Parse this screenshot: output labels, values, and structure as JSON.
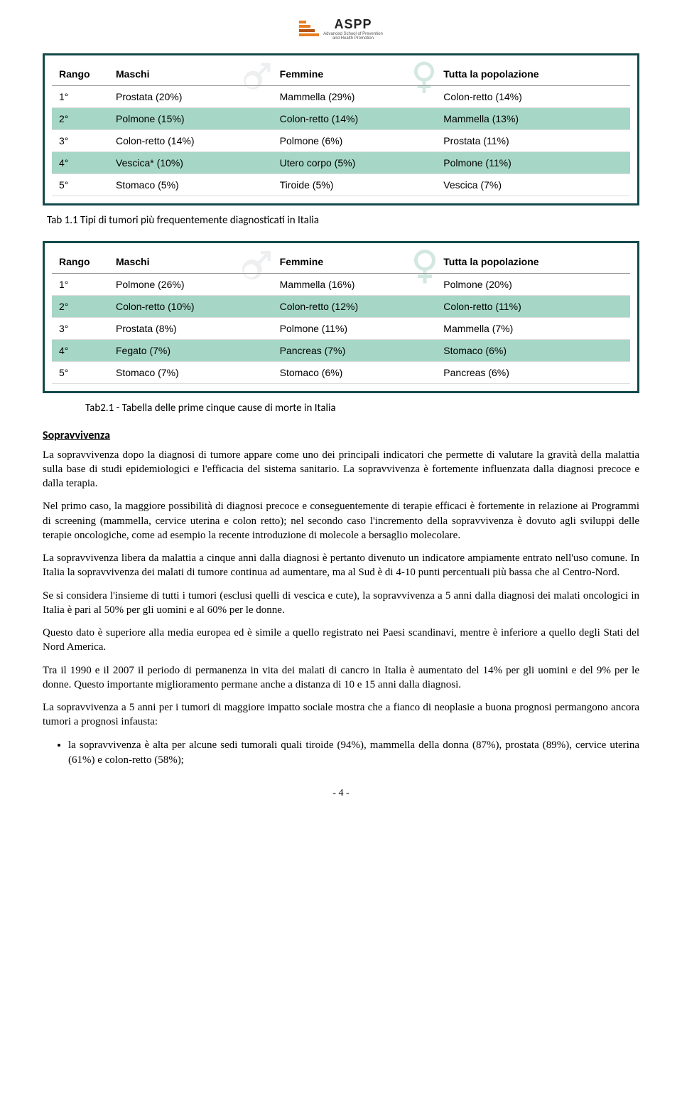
{
  "logo": {
    "title": "ASPP",
    "sub1": "Advanced School of Prevention",
    "sub2": "and Health Promotion"
  },
  "table1": {
    "headers": [
      "Rango",
      "Maschi",
      "Femmine",
      "Tutta la popolazione"
    ],
    "rows": [
      {
        "shade": false,
        "cells": [
          "1°",
          "Prostata (20%)",
          "Mammella (29%)",
          "Colon-retto (14%)"
        ]
      },
      {
        "shade": true,
        "cells": [
          "2°",
          "Polmone (15%)",
          "Colon-retto (14%)",
          "Mammella (13%)"
        ]
      },
      {
        "shade": false,
        "cells": [
          "3°",
          "Colon-retto (14%)",
          "Polmone (6%)",
          "Prostata (11%)"
        ]
      },
      {
        "shade": true,
        "cells": [
          "4°",
          "Vescica* (10%)",
          "Utero corpo (5%)",
          "Polmone (11%)"
        ]
      },
      {
        "shade": false,
        "cells": [
          "5°",
          "Stomaco (5%)",
          "Tiroide (5%)",
          "Vescica (7%)"
        ]
      }
    ],
    "caption": "Tab 1.1 Tipi di tumori più frequentemente diagnosticati in Italia"
  },
  "table2": {
    "headers": [
      "Rango",
      "Maschi",
      "Femmine",
      "Tutta la popolazione"
    ],
    "rows": [
      {
        "shade": false,
        "cells": [
          "1°",
          "Polmone (26%)",
          "Mammella (16%)",
          "Polmone (20%)"
        ]
      },
      {
        "shade": true,
        "cells": [
          "2°",
          "Colon-retto (10%)",
          "Colon-retto (12%)",
          "Colon-retto (11%)"
        ]
      },
      {
        "shade": false,
        "cells": [
          "3°",
          "Prostata (8%)",
          "Polmone (11%)",
          "Mammella (7%)"
        ]
      },
      {
        "shade": true,
        "cells": [
          "4°",
          "Fegato (7%)",
          "Pancreas (7%)",
          "Stomaco (6%)"
        ]
      },
      {
        "shade": false,
        "cells": [
          "5°",
          "Stomaco (7%)",
          "Stomaco (6%)",
          "Pancreas (6%)"
        ]
      }
    ],
    "caption": "Tab2.1 - Tabella delle prime cinque cause di morte in Italia"
  },
  "section_heading": "Sopravvivenza",
  "paragraphs": [
    "La sopravvivenza dopo la diagnosi di tumore appare come uno dei principali indicatori che permette di valutare la gravità della malattia sulla base di studi epidemiologici e l'efficacia del sistema sanitario. La sopravvivenza è fortemente influenzata dalla diagnosi precoce e dalla terapia.",
    "Nel primo caso, la maggiore possibilità di diagnosi precoce e conseguentemente di terapie efficaci è fortemente in relazione ai Programmi di screening (mammella, cervice uterina e colon retto); nel secondo caso l'incremento della sopravvivenza è dovuto agli sviluppi delle terapie oncologiche, come ad esempio la recente introduzione di molecole a bersaglio molecolare.",
    "La sopravvivenza libera da malattia a cinque anni dalla diagnosi è pertanto divenuto un indicatore ampiamente entrato nell'uso comune. In Italia la sopravvivenza dei malati di tumore continua ad aumentare, ma al Sud è di 4-10 punti percentuali più bassa che al Centro-Nord.",
    "Se si considera l'insieme di tutti i tumori (esclusi quelli di vescica e cute), la sopravvivenza a 5 anni dalla diagnosi dei malati oncologici in Italia è pari al 50% per gli uomini e al 60% per le donne.",
    "Questo dato è superiore alla media europea ed è simile a quello registrato nei Paesi scandinavi, mentre è inferiore a quello degli Stati del Nord America.",
    "Tra il 1990 e il 2007 il periodo di permanenza in vita dei malati di cancro in Italia è aumentato del 14% per gli uomini e del 9% per le donne. Questo importante miglioramento permane anche a distanza di 10 e 15 anni dalla diagnosi.",
    "La sopravvivenza a 5 anni per i tumori di maggiore impatto sociale mostra che a fianco di neoplasie a buona prognosi permangono ancora tumori a prognosi infausta:"
  ],
  "bullets": [
    "la sopravvivenza è alta per alcune sedi tumorali quali tiroide (94%), mammella della donna (87%), prostata (89%), cervice uterina (61%) e colon-retto (58%);"
  ],
  "page_number": "- 4 -",
  "colors": {
    "table_border": "#14494a",
    "row_shade": "#a6d7c6",
    "logo_orange": "#e67e22"
  }
}
